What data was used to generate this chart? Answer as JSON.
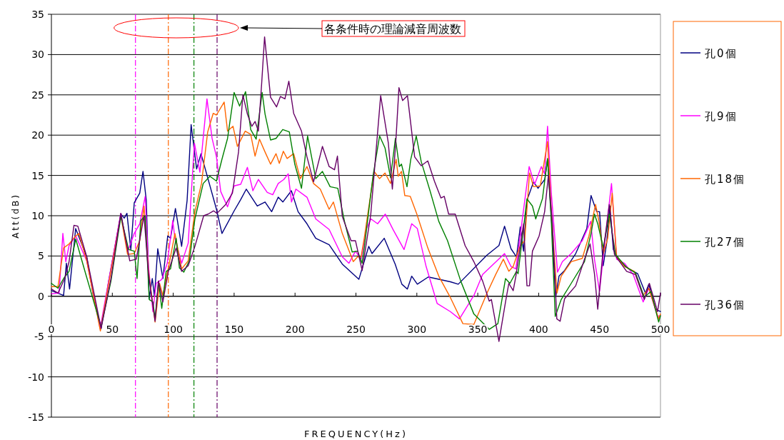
{
  "chart_data": {
    "type": "line",
    "xlabel": "FREQUENCY(Hz)",
    "ylabel": "Att(dB)",
    "xlim": [
      0,
      500
    ],
    "ylim": [
      -15,
      35
    ],
    "xticks": [
      0,
      50,
      100,
      150,
      200,
      250,
      300,
      350,
      400,
      450,
      500
    ],
    "yticks": [
      -15,
      -10,
      -5,
      0,
      5,
      10,
      15,
      20,
      25,
      30,
      35
    ],
    "grid": "y",
    "legend": "right",
    "marker": "none",
    "line_style": "solid",
    "annotations": [
      "各条件時の理論減音周波数"
    ],
    "ref_lines": [
      {
        "axis": "x",
        "value": 69,
        "color": "#ff00ff",
        "line_style": "dashdot"
      },
      {
        "axis": "x",
        "value": 96,
        "color": "#ff6600",
        "line_style": "dashdot"
      },
      {
        "axis": "x",
        "value": 117,
        "color": "#008000",
        "line_style": "dashdot"
      },
      {
        "axis": "x",
        "value": 136,
        "color": "#660066",
        "line_style": "dashdot"
      }
    ],
    "series": [
      {
        "name": "孔0個",
        "color": "#000080",
        "x": [
          0,
          10,
          12.3,
          14.9,
          19.9,
          29,
          34.4,
          40.8,
          47,
          57,
          59.8,
          62,
          65.2,
          68,
          72.5,
          75.2,
          77.9,
          80.3,
          82.8,
          84.6,
          87.3,
          91.5,
          95.5,
          97.8,
          101.8,
          106.9,
          111.4,
          114.7,
          119.2,
          122.8,
          135.5,
          140,
          150,
          155.4,
          160,
          169,
          175.4,
          180.8,
          186.2,
          190,
          197,
          202.5,
          209.8,
          217,
          228,
          238.8,
          246,
          252.4,
          260.5,
          263.2,
          273.2,
          282.2,
          287.7,
          292.2,
          295.8,
          300.4,
          309.4,
          327.5,
          334,
          357.5,
          367.4,
          372,
          377.3,
          381.8,
          384.9,
          387.6,
          390.4,
          395.8,
          399.5,
          405,
          407.3,
          410.4,
          414,
          416.7,
          421.3,
          430.4,
          439.5,
          443,
          447.6,
          450,
          453,
          455.8,
          458.5,
          461.3,
          466.7,
          474,
          481.3,
          487.6,
          490.4,
          495.8,
          500
        ],
        "values": [
          0.7,
          0.1,
          4.1,
          0.9,
          8.4,
          4.9,
          0.1,
          -4,
          1.9,
          10.2,
          9.7,
          10.3,
          5.8,
          11.6,
          12.8,
          15.5,
          11.9,
          -0.3,
          2.2,
          0,
          5.9,
          2.2,
          7.5,
          7.2,
          10.9,
          6.2,
          11.9,
          21.3,
          15.8,
          17.7,
          10.8,
          7.8,
          10.6,
          12,
          13.3,
          11.2,
          11.7,
          10.5,
          12.3,
          11.7,
          13.1,
          10.5,
          9,
          7.2,
          6.4,
          4,
          3,
          2.1,
          6.2,
          5.3,
          7.2,
          4,
          1.5,
          0.9,
          2.5,
          1.5,
          2.4,
          1.8,
          1.5,
          5.1,
          6.3,
          8.7,
          5.9,
          4.9,
          8.6,
          5.6,
          11.9,
          14.2,
          13.4,
          14.5,
          17,
          9.9,
          -0.1,
          2.5,
          3.2,
          5.3,
          8.4,
          12.5,
          10.5,
          10.5,
          3.8,
          6.6,
          11.2,
          5.8,
          4.3,
          3.4,
          2.8,
          0.4,
          1.5,
          -1.6,
          -1.9
        ]
      },
      {
        "name": "孔9個",
        "color": "#ff00ff",
        "x": [
          0,
          6.3,
          9.4,
          11.8,
          14.5,
          20,
          29,
          40,
          47,
          57,
          62.5,
          68,
          72.5,
          77,
          79.7,
          83.3,
          86,
          90.6,
          95.1,
          99.6,
          101.4,
          106.9,
          112.3,
          117.4,
          121.9,
          127.7,
          131.9,
          135.5,
          139,
          144.6,
          150,
          155.4,
          160.9,
          165.4,
          169.9,
          177.2,
          181.7,
          186.2,
          190.8,
          194.4,
          197.1,
          200.7,
          209.8,
          217,
          228,
          238.8,
          244.2,
          249.6,
          254.2,
          258.7,
          262.3,
          267.8,
          274.1,
          280.4,
          289.5,
          295.8,
          300.4,
          307.6,
          316.7,
          327.5,
          335,
          346.8,
          354,
          372,
          377.3,
          381.3,
          392.2,
          396.7,
          402.2,
          404.9,
          407.3,
          410.4,
          415.5,
          419.5,
          426.7,
          435.8,
          442.7,
          445.8,
          450,
          454,
          459.8,
          464,
          470.4,
          477.6,
          485.8,
          490.4,
          497.6,
          500
        ],
        "values": [
          0.3,
          0.4,
          7.8,
          4.3,
          6.3,
          7.5,
          4.4,
          -4,
          1.9,
          10.3,
          5.5,
          7.8,
          9,
          12.4,
          3.7,
          -1.9,
          1.6,
          2.1,
          4.1,
          9.4,
          7.2,
          4.1,
          6.6,
          19,
          15.4,
          24.5,
          19.6,
          17.3,
          13,
          11.1,
          13.7,
          13.9,
          16,
          13.1,
          14.5,
          12.9,
          12.6,
          14,
          14.5,
          15.2,
          11.7,
          13.3,
          12.3,
          9.6,
          8.3,
          4.9,
          4.1,
          5.6,
          4.6,
          8.4,
          9.6,
          9,
          10.2,
          8.3,
          5.8,
          9,
          8.4,
          3.7,
          -0.9,
          -1.9,
          -2.8,
          0.1,
          2.7,
          5.3,
          3.7,
          3.4,
          16.1,
          13.9,
          16.1,
          15.2,
          21.1,
          12.8,
          3,
          4.3,
          5.3,
          6.9,
          9.3,
          4.6,
          0.6,
          6.3,
          14,
          4.6,
          4.1,
          2.7,
          -0.7,
          1,
          -2.5,
          -2.4
        ]
      },
      {
        "name": "孔18個",
        "color": "#ff6600",
        "x": [
          0,
          5.4,
          10,
          14.5,
          20,
          22.6,
          29,
          40.2,
          48,
          57,
          62.5,
          68,
          72.5,
          76,
          79.7,
          85.1,
          88.8,
          91.5,
          97,
          101.4,
          106.9,
          112.3,
          117.8,
          123.2,
          128.3,
          132.8,
          135.5,
          141.8,
          144.6,
          149.1,
          152.7,
          159.1,
          163.6,
          167.2,
          170.8,
          175.4,
          179.9,
          184.4,
          187.1,
          190.4,
          193.5,
          198.9,
          204.3,
          209.8,
          215.2,
          220.7,
          228,
          231.5,
          238.8,
          247.8,
          251.4,
          254.2,
          256.8,
          264.9,
          269.4,
          273.9,
          278.4,
          283,
          284.7,
          287.4,
          290.1,
          294.6,
          300,
          309,
          318,
          327,
          337.8,
          346.8,
          357.6,
          364.7,
          371,
          375.5,
          379.1,
          384.9,
          388.5,
          392.5,
          395.8,
          401.3,
          407.3,
          410.4,
          415,
          418.5,
          426.7,
          435.8,
          441.3,
          446.7,
          449.5,
          453.1,
          456.7,
          460.4,
          464,
          470.4,
          478.5,
          485.8,
          490.4,
          498.5,
          500
        ],
        "values": [
          1.2,
          1.2,
          6,
          6.5,
          7.5,
          7.8,
          4.4,
          -4.3,
          2.4,
          10,
          5.2,
          5.3,
          6.9,
          11.2,
          3.1,
          -3.2,
          1.6,
          0.1,
          4.3,
          7.8,
          3.4,
          4.4,
          10.5,
          14,
          20.4,
          22.7,
          22.5,
          24.1,
          20.5,
          21.1,
          18.6,
          20.5,
          20.1,
          17.4,
          19.5,
          17.9,
          16.4,
          17.7,
          16.5,
          18,
          17.1,
          17.7,
          14.6,
          16.1,
          14,
          13.3,
          10.8,
          11.7,
          7.8,
          4.3,
          4.9,
          4.9,
          7.2,
          15.5,
          14.6,
          15.3,
          14,
          17,
          14.9,
          15.5,
          12.5,
          12.4,
          10.2,
          6,
          2.5,
          0,
          -3.4,
          -3.5,
          0.4,
          2.7,
          4.6,
          3.1,
          3.7,
          6.3,
          6.9,
          15.3,
          13.6,
          13.7,
          19.2,
          10.5,
          0.4,
          2.5,
          4.3,
          4.7,
          7.5,
          11.4,
          9.3,
          5.3,
          7.2,
          12.8,
          4.9,
          3.7,
          3.1,
          0.1,
          1,
          -2.8,
          -2.2
        ]
      },
      {
        "name": "孔27個",
        "color": "#008000",
        "x": [
          0,
          5.4,
          10,
          14.5,
          20,
          28.1,
          40.8,
          48.9,
          57,
          63.4,
          68,
          70.3,
          73.4,
          77,
          80.3,
          83.3,
          85.1,
          87.9,
          90.6,
          94.2,
          97.8,
          102.4,
          105.1,
          108.7,
          113.2,
          117.8,
          124.6,
          130.1,
          135.5,
          140,
          144.6,
          150,
          154.5,
          159.4,
          163.6,
          168.1,
          173,
          175.4,
          179.9,
          184.4,
          189.9,
          195.3,
          199.8,
          205.3,
          210.3,
          217,
          222.5,
          228.8,
          235.1,
          240.6,
          246.9,
          251.4,
          255,
          256.8,
          264,
          269.4,
          273.9,
          278.4,
          282.4,
          285.6,
          287.4,
          291.9,
          295,
          299.5,
          303.6,
          310.8,
          318,
          325.2,
          336,
          346.8,
          359.4,
          366.5,
          372.8,
          376.4,
          381.8,
          383.1,
          390.4,
          394.9,
          397.6,
          403.1,
          407.3,
          410.4,
          413.6,
          418.5,
          426.7,
          437.6,
          443,
          445.8,
          448.5,
          453.1,
          458,
          463.1,
          471.3,
          479.5,
          486.7,
          492.2,
          498.5,
          500
        ],
        "values": [
          1.6,
          1,
          2.2,
          3.1,
          7.1,
          2.8,
          -3.8,
          1.9,
          9.9,
          5.8,
          5.6,
          2.2,
          9.4,
          10,
          -0.4,
          -0.7,
          -2.8,
          1.9,
          -1.5,
          3.1,
          3.4,
          7.2,
          3.5,
          3,
          4.4,
          9.6,
          14,
          14.9,
          14.3,
          17,
          19.6,
          25.3,
          23.6,
          25.4,
          20.7,
          19.5,
          25.3,
          22.6,
          19.4,
          19.6,
          20.7,
          20.4,
          16.4,
          13.4,
          19.9,
          14.6,
          15.5,
          13.6,
          13.4,
          9.3,
          5.5,
          5.6,
          4.1,
          6,
          14.9,
          19.9,
          18.4,
          14.7,
          19.6,
          16.1,
          16.4,
          13.6,
          17,
          19.9,
          16.7,
          13.1,
          9.3,
          6.9,
          1.9,
          -2.2,
          -4.1,
          -3.4,
          2.2,
          1.6,
          3.1,
          2.8,
          12.1,
          11.2,
          9.6,
          12.1,
          17.1,
          9.3,
          -2.5,
          -0.4,
          1.6,
          4.3,
          7.8,
          10.2,
          9,
          6,
          10.2,
          5.2,
          3.7,
          2.9,
          -0.1,
          0.6,
          -3.2,
          -2.4
        ]
      },
      {
        "name": "孔36個",
        "color": "#660066",
        "x": [
          0,
          5.4,
          10.9,
          14.5,
          18.5,
          21.7,
          29,
          40.8,
          48.9,
          57,
          64.3,
          69.7,
          76,
          79.7,
          85.1,
          87.9,
          91.5,
          96,
          102.4,
          106.9,
          112.3,
          117.8,
          125,
          128.6,
          133.2,
          135.9,
          143.1,
          148.6,
          153.6,
          157.2,
          160.9,
          164.5,
          167.2,
          169.9,
          172.6,
          175,
          179.9,
          184.8,
          188,
          191.7,
          194.9,
          198.9,
          205.3,
          209.8,
          215.2,
          222.5,
          228,
          232.4,
          234.8,
          238.8,
          246,
          249.6,
          255.1,
          262.2,
          270.3,
          276.6,
          279.9,
          282.9,
          285.3,
          288.3,
          292.3,
          298.2,
          303.6,
          309,
          314.4,
          319.8,
          322.5,
          326.1,
          331.5,
          339.6,
          346.8,
          354,
          359.4,
          361.2,
          367.4,
          372.8,
          375.5,
          379.1,
          381.3,
          387.6,
          390.4,
          392.5,
          394.9,
          400.4,
          404.9,
          408,
          411.3,
          414.9,
          417.6,
          421.3,
          430.4,
          437.6,
          442.2,
          445.8,
          448.5,
          452.2,
          458,
          462.2,
          472.2,
          479.5,
          486.7,
          490.9,
          497.6,
          500
        ],
        "values": [
          0.9,
          0.4,
          2.2,
          4.3,
          8.8,
          8.7,
          4.9,
          -4,
          2.2,
          10.3,
          4.4,
          4.6,
          10,
          2.8,
          -3.1,
          1.9,
          -0.7,
          3.1,
          6,
          3.1,
          3.8,
          6.2,
          10,
          10.2,
          10.6,
          10.3,
          11.4,
          12.8,
          17.9,
          25,
          22.6,
          21.1,
          21.7,
          20.5,
          26.4,
          32.2,
          24.7,
          23.5,
          24.8,
          24.5,
          26.7,
          22.7,
          20.5,
          17.3,
          14.2,
          18.6,
          16.1,
          15.7,
          17.4,
          9.9,
          6.9,
          6.9,
          3.2,
          10.2,
          24.9,
          19,
          13.3,
          19.6,
          25.9,
          24.3,
          24.9,
          17.3,
          16.2,
          16.8,
          14.3,
          12.2,
          12.4,
          10.2,
          10.2,
          6.3,
          4.3,
          1.9,
          -0.6,
          -0.4,
          -5.6,
          -0.7,
          1.6,
          0.7,
          2.5,
          9,
          1.3,
          1.3,
          5.6,
          7.5,
          10.5,
          15,
          9,
          -2.8,
          -3.1,
          -0.3,
          1.3,
          4.6,
          6.5,
          2.8,
          -1.6,
          4.6,
          11.4,
          5.2,
          3.1,
          2.7,
          -0.4,
          1.6,
          -1.9,
          0.4
        ]
      }
    ]
  }
}
